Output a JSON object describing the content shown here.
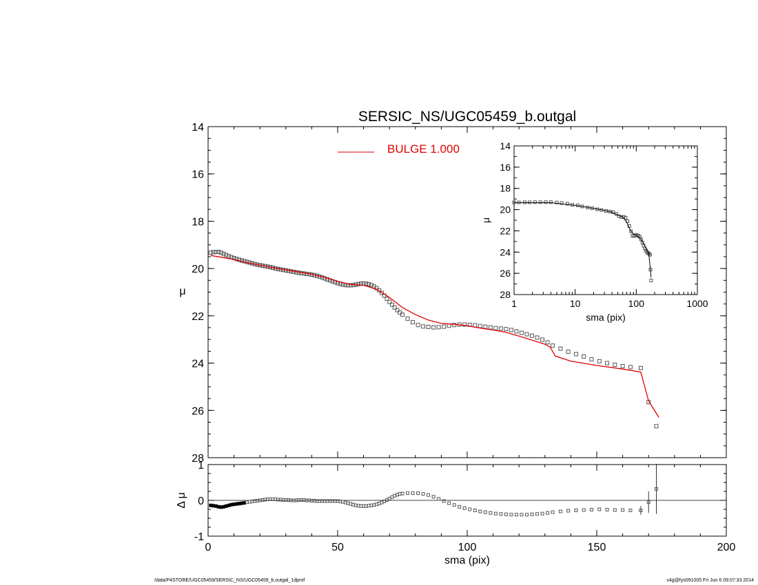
{
  "title": "SERSIC_NS/UGC05459_b.outgal",
  "footer": {
    "path": "/data/P4STORE/UGC05459/SERSIC_NS/UGC05459_b.outgal_1dprof",
    "stamp": "s4g@fys091005  Fri Jun  6 09:07:33 2014"
  },
  "colors": {
    "model": "#e00000",
    "data": "#555555",
    "axes": "#000000"
  },
  "chart_data": [
    {
      "type": "scatter",
      "name": "main-profile",
      "xlabel": "",
      "ylabel": "μ",
      "xlim": [
        0,
        200
      ],
      "ylim": [
        28,
        14
      ],
      "y_inverted": true,
      "x_ticks": [
        0,
        50,
        100,
        150,
        200
      ],
      "y_ticks": [
        14,
        16,
        18,
        20,
        22,
        24,
        26,
        28
      ],
      "legend": {
        "label": "BULGE  1.000",
        "placement": "top-center"
      },
      "series": [
        {
          "kind": "points",
          "x": [
            1,
            2,
            3,
            4,
            5,
            6,
            7,
            8,
            9,
            10,
            11,
            12,
            13,
            14,
            15,
            16,
            17,
            18,
            19,
            20,
            21,
            22,
            23,
            24,
            25,
            26,
            27,
            28,
            29,
            30,
            31,
            32,
            33,
            34,
            35,
            36,
            37,
            38,
            39,
            40,
            41,
            42,
            43,
            44,
            45,
            46,
            47,
            48,
            49,
            50,
            51,
            52,
            53,
            54,
            55,
            56,
            57,
            58,
            59,
            60,
            61,
            62,
            63,
            64,
            65,
            66,
            67,
            68,
            69,
            70,
            71,
            72,
            73,
            74,
            75,
            77,
            79,
            81,
            83,
            85,
            87,
            89,
            91,
            93,
            95,
            97,
            99,
            101,
            103,
            105,
            107,
            109,
            111,
            113,
            115,
            117,
            119,
            121,
            123,
            125,
            127,
            129,
            131,
            133,
            136,
            139,
            142,
            145,
            148,
            151,
            154,
            157,
            160,
            163,
            167,
            170,
            173
          ],
          "y": [
            19.33,
            19.31,
            19.3,
            19.3,
            19.33,
            19.38,
            19.43,
            19.48,
            19.52,
            19.56,
            19.6,
            19.63,
            19.66,
            19.69,
            19.72,
            19.75,
            19.78,
            19.81,
            19.84,
            19.86,
            19.88,
            19.9,
            19.92,
            19.94,
            19.97,
            20.0,
            20.02,
            20.04,
            20.06,
            20.08,
            20.1,
            20.12,
            20.14,
            20.16,
            20.18,
            20.2,
            20.21,
            20.23,
            20.24,
            20.26,
            20.28,
            20.31,
            20.34,
            20.38,
            20.42,
            20.46,
            20.5,
            20.54,
            20.58,
            20.62,
            20.65,
            20.68,
            20.7,
            20.71,
            20.71,
            20.7,
            20.68,
            20.66,
            20.64,
            20.63,
            20.64,
            20.66,
            20.7,
            20.76,
            20.83,
            20.92,
            21.03,
            21.15,
            21.28,
            21.41,
            21.53,
            21.65,
            21.76,
            21.86,
            21.95,
            22.12,
            22.27,
            22.39,
            22.45,
            22.47,
            22.49,
            22.48,
            22.46,
            22.42,
            22.39,
            22.37,
            22.37,
            22.38,
            22.4,
            22.43,
            22.46,
            22.49,
            22.52,
            22.54,
            22.56,
            22.6,
            22.66,
            22.72,
            22.78,
            22.84,
            22.92,
            23.01,
            23.12,
            23.26,
            23.39,
            23.52,
            23.62,
            23.72,
            23.84,
            23.92,
            24.0,
            24.07,
            24.13,
            24.17,
            24.21,
            25.65,
            26.67
          ]
        },
        {
          "kind": "line",
          "name": "BULGE  1.000",
          "x": [
            1,
            5,
            10,
            15,
            20,
            25,
            30,
            35,
            40,
            45,
            50,
            55,
            60,
            65,
            70,
            75,
            80,
            85,
            90,
            95,
            100,
            105,
            110,
            115,
            120,
            125,
            130,
            132,
            134,
            140,
            150,
            160,
            167,
            170,
            174
          ],
          "y": [
            19.45,
            19.52,
            19.62,
            19.75,
            19.86,
            19.96,
            20.06,
            20.15,
            20.24,
            20.37,
            20.54,
            20.67,
            20.71,
            20.88,
            21.22,
            21.65,
            21.95,
            22.18,
            22.32,
            22.36,
            22.42,
            22.52,
            22.6,
            22.7,
            22.86,
            23.03,
            23.2,
            23.32,
            23.7,
            23.92,
            24.1,
            24.25,
            24.38,
            25.6,
            26.3
          ]
        }
      ]
    },
    {
      "type": "scatter",
      "name": "inset-log-profile",
      "xlabel": "sma (pix)",
      "ylabel": "μ",
      "x_scale": "log",
      "xlim": [
        1,
        1000
      ],
      "ylim": [
        28,
        14
      ],
      "y_inverted": true,
      "x_ticks": [
        1,
        10,
        100,
        1000
      ],
      "y_ticks": [
        14,
        16,
        18,
        20,
        22,
        24,
        26,
        28
      ],
      "series": [
        {
          "kind": "points",
          "x": [
            1,
            1.2,
            1.5,
            1.8,
            2.2,
            2.7,
            3.3,
            4,
            5,
            6,
            7.5,
            9,
            11,
            13,
            16,
            19,
            23,
            27,
            32,
            37,
            42,
            47,
            52,
            57,
            62,
            67,
            72,
            77,
            82,
            87,
            92,
            97,
            102,
            108,
            114,
            120,
            126,
            132,
            138,
            144,
            150,
            156,
            162,
            168,
            171,
            175
          ],
          "y": [
            19.32,
            19.32,
            19.31,
            19.31,
            19.3,
            19.3,
            19.3,
            19.3,
            19.33,
            19.38,
            19.45,
            19.55,
            19.6,
            19.7,
            19.8,
            19.87,
            19.97,
            20.04,
            20.12,
            20.18,
            20.25,
            20.4,
            20.62,
            20.7,
            20.68,
            20.76,
            21.1,
            21.55,
            22.05,
            22.46,
            22.48,
            22.42,
            22.38,
            22.46,
            22.56,
            22.8,
            23.1,
            23.4,
            23.65,
            23.85,
            24.0,
            24.1,
            24.15,
            24.25,
            25.65,
            26.67
          ]
        },
        {
          "kind": "line",
          "x": [
            1,
            2,
            4,
            7,
            10,
            20,
            30,
            40,
            50,
            60,
            70,
            80,
            90,
            100,
            120,
            140,
            160,
            170,
            175
          ],
          "y": [
            19.35,
            19.35,
            19.35,
            19.5,
            19.6,
            19.88,
            20.08,
            20.25,
            20.52,
            20.7,
            21.2,
            21.95,
            22.3,
            22.4,
            22.8,
            23.5,
            24.1,
            25.6,
            26.4
          ]
        }
      ]
    },
    {
      "type": "scatter",
      "name": "residuals",
      "xlabel": "sma (pix)",
      "ylabel": "Δ μ",
      "xlim": [
        0,
        200
      ],
      "ylim": [
        -1,
        1
      ],
      "x_ticks": [
        0,
        50,
        100,
        150,
        200
      ],
      "y_ticks": [
        -1,
        0,
        1
      ],
      "zero_line": true,
      "series": [
        {
          "kind": "points",
          "x": [
            1,
            2,
            3,
            4,
            5,
            6,
            7,
            8,
            9,
            10,
            11,
            12,
            13,
            14,
            15,
            16,
            17,
            18,
            19,
            20,
            21,
            22,
            23,
            24,
            25,
            26,
            27,
            28,
            29,
            30,
            31,
            32,
            33,
            34,
            35,
            36,
            37,
            38,
            39,
            40,
            41,
            42,
            43,
            44,
            45,
            46,
            47,
            48,
            49,
            50,
            51,
            52,
            53,
            54,
            55,
            56,
            57,
            58,
            59,
            60,
            61,
            62,
            63,
            64,
            65,
            66,
            67,
            68,
            69,
            70,
            71,
            72,
            73,
            74,
            75,
            77,
            79,
            81,
            83,
            85,
            87,
            89,
            91,
            93,
            95,
            97,
            99,
            101,
            103,
            105,
            107,
            109,
            111,
            113,
            115,
            117,
            119,
            121,
            123,
            125,
            127,
            129,
            131,
            133,
            136,
            139,
            142,
            145,
            148,
            151,
            154,
            157,
            160,
            163,
            167,
            170,
            173
          ],
          "y": [
            -0.14,
            -0.15,
            -0.16,
            -0.18,
            -0.19,
            -0.18,
            -0.16,
            -0.14,
            -0.12,
            -0.11,
            -0.1,
            -0.09,
            -0.08,
            -0.07,
            -0.05,
            -0.04,
            -0.03,
            -0.02,
            -0.01,
            0.0,
            0.01,
            0.02,
            0.03,
            0.03,
            0.03,
            0.03,
            0.02,
            0.02,
            0.01,
            0.01,
            0.01,
            0.0,
            0.0,
            0.0,
            0.01,
            0.01,
            0.01,
            0.0,
            0.0,
            -0.01,
            -0.01,
            -0.02,
            -0.02,
            -0.02,
            -0.02,
            -0.02,
            -0.02,
            -0.02,
            -0.02,
            -0.02,
            -0.03,
            -0.04,
            -0.06,
            -0.08,
            -0.1,
            -0.12,
            -0.14,
            -0.15,
            -0.16,
            -0.16,
            -0.16,
            -0.15,
            -0.14,
            -0.13,
            -0.11,
            -0.09,
            -0.06,
            -0.03,
            0.01,
            0.05,
            0.09,
            0.13,
            0.16,
            0.18,
            0.19,
            0.2,
            0.2,
            0.2,
            0.18,
            0.15,
            0.1,
            0.04,
            -0.02,
            -0.08,
            -0.13,
            -0.18,
            -0.22,
            -0.25,
            -0.28,
            -0.31,
            -0.33,
            -0.35,
            -0.37,
            -0.38,
            -0.39,
            -0.4,
            -0.4,
            -0.4,
            -0.4,
            -0.39,
            -0.38,
            -0.37,
            -0.35,
            -0.33,
            -0.31,
            -0.29,
            -0.28,
            -0.27,
            -0.26,
            -0.25,
            -0.26,
            -0.27,
            -0.27,
            -0.28,
            -0.28,
            -0.05,
            0.32
          ],
          "yerr": {
            "x": [
              167,
              170,
              173
            ],
            "err": [
              0.12,
              0.3,
              0.7
            ]
          }
        }
      ]
    }
  ]
}
